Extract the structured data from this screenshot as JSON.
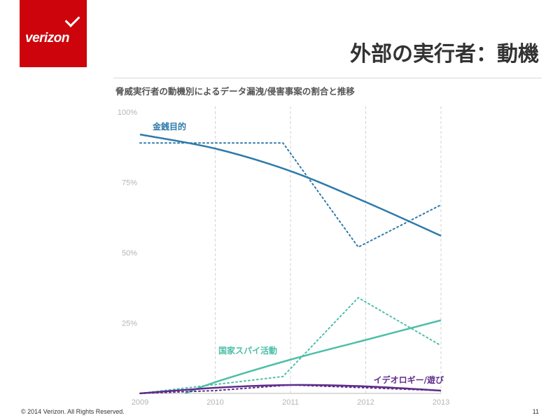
{
  "logo": {
    "text": "verizon"
  },
  "header": {
    "title": "外部の実行者：動機"
  },
  "footer": {
    "copyright": "© 2014 Verizon. All Rights Reserved.",
    "page_number": "11"
  },
  "colors": {
    "brand_red": "#cd040b",
    "financial": "#2e7aab",
    "espionage": "#4dbfa8",
    "ideology": "#5e2d8a"
  },
  "chart_data": {
    "type": "line",
    "title": "脅威実行者の動機別によるデータ漏洩/侵害事案の割合と推移",
    "xlabel": "",
    "ylabel": "",
    "xlim": [
      2009,
      2013
    ],
    "ylim": [
      0,
      1
    ],
    "x_ticks": [
      "2009",
      "2010",
      "2011",
      "2012",
      "2013"
    ],
    "y_ticks": [
      "25%",
      "50%",
      "75%",
      "100%"
    ],
    "grid": "vertical dashed lines at years",
    "series": [
      {
        "name": "金銭目的",
        "color": "#2e7aab",
        "actual": {
          "x": [
            2009,
            2010.9,
            2011.9,
            2013
          ],
          "y": [
            0.89,
            0.89,
            0.52,
            0.67
          ]
        },
        "trend": {
          "x": [
            2009,
            2010,
            2011,
            2012,
            2013
          ],
          "y": [
            0.92,
            0.87,
            0.79,
            0.68,
            0.56
          ]
        }
      },
      {
        "name": "国家スパイ活動",
        "color": "#4dbfa8",
        "actual": {
          "x": [
            2009,
            2010.9,
            2011.9,
            2013
          ],
          "y": [
            0.0,
            0.06,
            0.34,
            0.17
          ]
        },
        "trend": {
          "x": [
            2009.6,
            2010,
            2011,
            2012,
            2013
          ],
          "y": [
            0.0,
            0.04,
            0.12,
            0.19,
            0.26
          ]
        }
      },
      {
        "name": "イデオロギー/遊び",
        "color": "#5e2d8a",
        "actual": {
          "x": [
            2009,
            2010,
            2011,
            2012,
            2013
          ],
          "y": [
            0.0,
            0.01,
            0.03,
            0.02,
            0.01
          ]
        },
        "trend": {
          "x": [
            2009,
            2010,
            2011,
            2012,
            2013
          ],
          "y": [
            0.0,
            0.02,
            0.03,
            0.025,
            0.01
          ]
        }
      }
    ]
  }
}
